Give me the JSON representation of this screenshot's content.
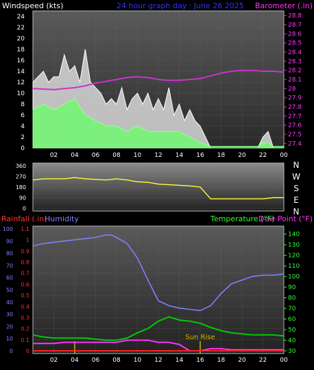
{
  "header": {
    "windspeed_label": "Windspeed (kts)",
    "graph_title": "24 hour graph day : June 26 2025",
    "barometer_label": "Barometer (.in)"
  },
  "middle": {
    "compass": [
      "N",
      "W",
      "S",
      "E",
      "N"
    ]
  },
  "bottom_header": {
    "rainfall_label": "Rainfall (.in)",
    "humidity_label": "Humidity",
    "temperature_label": "Temperature (°F)",
    "dewpoint_label": "Dew Point (°F)"
  },
  "colors": {
    "wind": "#ffffff",
    "wind_avg": "#66ff66",
    "barometer": "#cc33cc",
    "direction": "#ffff33",
    "rainfall": "#ff3333",
    "humidity": "#8080ff",
    "temperature": "#00cc00",
    "dewpoint": "#ff33ff",
    "sunrise": "#d4b400"
  },
  "chart_data": [
    {
      "type": "line",
      "name": "wind-barometer",
      "x_tick_labels": [
        "02",
        "04",
        "06",
        "08",
        "10",
        "12",
        "14",
        "16",
        "18",
        "20",
        "22",
        "00"
      ],
      "y_left": {
        "label": "Windspeed (kts)",
        "ylim": [
          0,
          25
        ],
        "ticks": [
          0,
          2,
          4,
          6,
          8,
          10,
          12,
          14,
          16,
          18,
          20,
          22,
          24
        ]
      },
      "y_right": {
        "label": "Barometer (.in)",
        "ylim": [
          27.35,
          28.85
        ],
        "ticks": [
          "27.4",
          "27.5",
          "27.6",
          "27.7",
          "27.8",
          "27.9",
          "28",
          "28.1",
          "28.2",
          "28.3",
          "28.4",
          "28.5",
          "28.6",
          "28.7",
          "28.8"
        ]
      },
      "wind_gust_envelope": {
        "x": [
          0,
          0.5,
          1,
          1.5,
          2,
          2.5,
          3,
          3.5,
          4,
          4.5,
          5,
          5.5,
          6,
          6.5,
          7,
          7.5,
          8,
          8.5,
          9,
          9.5,
          10,
          10.5,
          11,
          11.5,
          12,
          12.5,
          13,
          13.5,
          14,
          14.5,
          15,
          15.5,
          16,
          16.5,
          17,
          21.5,
          22,
          22.5,
          23
        ],
        "y": [
          12,
          13,
          14,
          12,
          13,
          13,
          17,
          14,
          15,
          12,
          18,
          12,
          11,
          10,
          8,
          9,
          8,
          11,
          7,
          9,
          10,
          8,
          10,
          7,
          9,
          7,
          11,
          6,
          8,
          5,
          7,
          5,
          4,
          2,
          0,
          0,
          2,
          3,
          0
        ]
      },
      "wind_average": {
        "x": [
          0,
          1,
          2,
          3,
          4,
          5,
          6,
          7,
          8,
          9,
          10,
          11,
          12,
          13,
          14,
          15,
          16,
          17,
          21.5,
          22,
          22.5,
          23,
          24
        ],
        "y": [
          7,
          8,
          7,
          8,
          9,
          6,
          5,
          4,
          4,
          3,
          4,
          3,
          3,
          3,
          3,
          2,
          1,
          0.3,
          0.3,
          1,
          1,
          0.3,
          0.3
        ]
      },
      "barometer": {
        "x": [
          0,
          2,
          3,
          4,
          5,
          6,
          7,
          8,
          9,
          10,
          11,
          12,
          13,
          14,
          15,
          16,
          17,
          18,
          19,
          20,
          21,
          22,
          23,
          24
        ],
        "y": [
          28.0,
          27.99,
          28.0,
          28.01,
          28.03,
          28.06,
          28.08,
          28.1,
          28.12,
          28.13,
          28.12,
          28.1,
          28.09,
          28.09,
          28.1,
          28.11,
          28.14,
          28.17,
          28.19,
          28.2,
          28.2,
          28.19,
          28.19,
          28.18
        ]
      }
    },
    {
      "type": "scatter",
      "name": "wind-direction",
      "y": {
        "ylim": [
          0,
          360
        ],
        "ticks": [
          0,
          90,
          180,
          270,
          360
        ]
      },
      "x": [
        0,
        1,
        2,
        3,
        4,
        5,
        6,
        7,
        8,
        9,
        10,
        11,
        12,
        13,
        14,
        15,
        16,
        17,
        18,
        19,
        20,
        21,
        22,
        23,
        24
      ],
      "values": [
        240,
        250,
        250,
        250,
        260,
        250,
        245,
        240,
        250,
        240,
        225,
        220,
        205,
        200,
        195,
        190,
        180,
        80,
        80,
        80,
        80,
        80,
        80,
        90,
        90
      ]
    },
    {
      "type": "line",
      "name": "rain-humidity-temp",
      "x_tick_labels": [
        "02",
        "04",
        "06",
        "08",
        "10",
        "12",
        "14",
        "16",
        "18",
        "20",
        "22",
        "00"
      ],
      "y_left": {
        "label": "Rainfall (.in)",
        "ylim": [
          0,
          1.1
        ],
        "ticks": [
          "0",
          "0.1",
          "0.2",
          "0.3",
          "0.4",
          "0.5",
          "0.6",
          "0.7",
          "0.8",
          "0.9",
          "1",
          "1.1"
        ]
      },
      "y_humidity": {
        "label": "Humidity",
        "ylim": [
          0,
          100
        ],
        "ticks": [
          "0",
          "10",
          "20",
          "30",
          "40",
          "50",
          "60",
          "70",
          "80",
          "90",
          "100"
        ]
      },
      "y_right": {
        "label": "Temperature (°F)",
        "ylim": [
          30,
          145
        ],
        "ticks": [
          "30",
          "40",
          "50",
          "60",
          "70",
          "80",
          "90",
          "100",
          "110",
          "120",
          "130",
          "140"
        ]
      },
      "annotations": [
        {
          "text": "Sun Rise",
          "x": 16
        }
      ],
      "humidity": {
        "x": [
          0,
          1,
          2,
          3,
          4,
          5,
          6,
          7,
          7.5,
          8,
          9,
          10,
          11,
          12,
          13,
          14,
          15,
          16,
          17,
          18,
          19,
          20,
          21,
          22,
          23,
          24
        ],
        "y": [
          86,
          88,
          89,
          90,
          91,
          92,
          93,
          95,
          95,
          93,
          88,
          76,
          58,
          41,
          37,
          35,
          34,
          33,
          37,
          47,
          55,
          58,
          61,
          62,
          62,
          63
        ]
      },
      "temperature": {
        "x": [
          0,
          1,
          2,
          3,
          4,
          5,
          6,
          7,
          8,
          9,
          10,
          11,
          12,
          13,
          14,
          15,
          16,
          17,
          18,
          19,
          20,
          21,
          22,
          23,
          24
        ],
        "y": [
          45,
          43,
          42,
          42,
          42,
          42,
          41,
          40,
          40,
          42,
          47,
          51,
          58,
          62,
          59,
          58,
          56,
          52,
          49,
          47,
          46,
          45,
          45,
          45,
          44
        ]
      },
      "dewpoint": {
        "x": [
          0,
          1,
          2,
          3,
          4,
          5,
          6,
          7,
          8,
          9,
          10,
          11,
          12,
          13,
          14,
          14.5,
          15,
          16,
          17,
          18,
          19,
          20,
          21,
          22,
          23,
          24
        ],
        "y": [
          37,
          37,
          37,
          38,
          38,
          38,
          38,
          38,
          38,
          40,
          40,
          40,
          38,
          38,
          36,
          33,
          30,
          30,
          32,
          32,
          31,
          31,
          31,
          31,
          31,
          31
        ]
      },
      "rainfall": {
        "x": [
          0,
          24
        ],
        "y": [
          0,
          0
        ]
      }
    }
  ]
}
